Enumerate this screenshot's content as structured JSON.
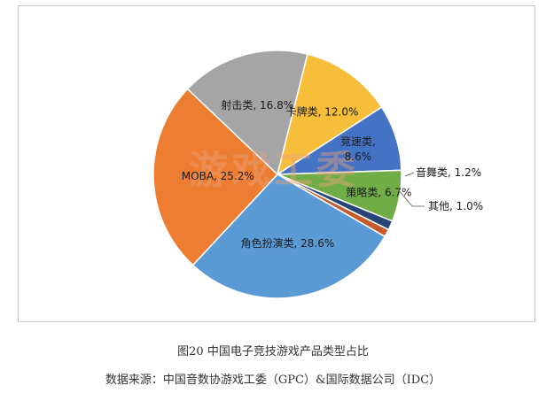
{
  "chart_data": {
    "type": "pie",
    "title": "",
    "slices": [
      {
        "label": "卡牌类",
        "value": 12.0,
        "display": "卡牌类, 12.0%",
        "color": "#F7BE3C"
      },
      {
        "label": "竞速类",
        "value": 8.6,
        "display_lines": [
          "竞速类,",
          "8.6%"
        ],
        "color": "#4472C4"
      },
      {
        "label": "策略类",
        "value": 6.7,
        "display": "策略类, 6.7%",
        "color": "#70AD47"
      },
      {
        "label": "音舞类",
        "value": 1.2,
        "display": "音舞类, 1.2%",
        "color": "#264478"
      },
      {
        "label": "其他",
        "value": 1.0,
        "display": "其他, 1.0%",
        "color": "#C55A2B"
      },
      {
        "label": "角色扮演类",
        "value": 28.6,
        "display": "角色扮演类, 28.6%",
        "color": "#5B9BD5"
      },
      {
        "label": "MOBA",
        "value": 25.2,
        "display": "MOBA, 25.2%",
        "color": "#ED7D31"
      },
      {
        "label": "射击类",
        "value": 16.8,
        "display": "射击类, 16.8%",
        "color": "#A5A5A5"
      }
    ]
  },
  "watermark": "游戏工委",
  "caption": "图20  中国电子竞技游戏产品类型占比",
  "source": "数据来源：中国音数协游戏工委（GPC）&国际数据公司（IDC）"
}
